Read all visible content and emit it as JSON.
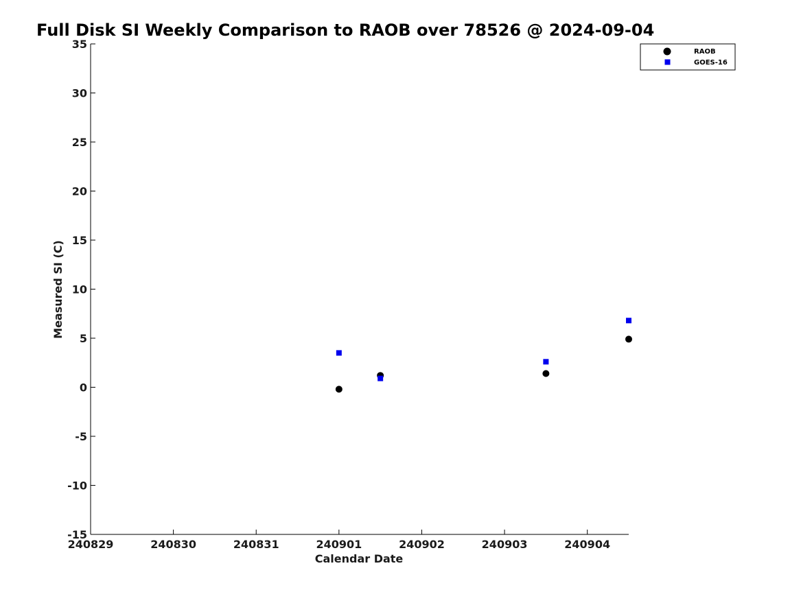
{
  "chart_data": {
    "type": "scatter",
    "title": "Full Disk SI Weekly Comparison to RAOB over 78526 @ 2024-09-04",
    "xlabel": "Calendar Date",
    "ylabel": "Measured SI (C)",
    "xlim": [
      "2024-08-29",
      "2024-09-04 12:00"
    ],
    "ylim": [
      -15,
      35
    ],
    "x_ticks": [
      {
        "date": "2024-08-29",
        "label": "240829"
      },
      {
        "date": "2024-08-30",
        "label": "240830"
      },
      {
        "date": "2024-08-31",
        "label": "240831"
      },
      {
        "date": "2024-09-01",
        "label": "240901"
      },
      {
        "date": "2024-09-02",
        "label": "240902"
      },
      {
        "date": "2024-09-03",
        "label": "240903"
      },
      {
        "date": "2024-09-04",
        "label": "240904"
      }
    ],
    "y_ticks": [
      {
        "value": 35,
        "label": "35"
      },
      {
        "value": 30,
        "label": "30"
      },
      {
        "value": 25,
        "label": "25"
      },
      {
        "value": 20,
        "label": "20"
      },
      {
        "value": 15,
        "label": "15"
      },
      {
        "value": 10,
        "label": "10"
      },
      {
        "value": 5,
        "label": "5"
      },
      {
        "value": 0,
        "label": "0"
      },
      {
        "value": -5,
        "label": "-5"
      },
      {
        "value": -10,
        "label": "-10"
      },
      {
        "value": -15,
        "label": "-15"
      }
    ],
    "grid": false,
    "legend_position": "top-right",
    "series": [
      {
        "name": "RAOB",
        "marker": "circle",
        "color": "#000000",
        "points": [
          {
            "x": "2024-09-01 00:00",
            "y": -0.2
          },
          {
            "x": "2024-09-01 12:00",
            "y": 1.2
          },
          {
            "x": "2024-09-03 12:00",
            "y": 1.4
          },
          {
            "x": "2024-09-04 12:00",
            "y": 4.9
          }
        ]
      },
      {
        "name": "GOES-16",
        "marker": "square",
        "color": "#0000ee",
        "points": [
          {
            "x": "2024-09-01 00:00",
            "y": 3.5
          },
          {
            "x": "2024-09-01 12:00",
            "y": 0.9
          },
          {
            "x": "2024-09-03 12:00",
            "y": 2.6
          },
          {
            "x": "2024-09-04 12:00",
            "y": 6.8
          }
        ]
      }
    ]
  }
}
